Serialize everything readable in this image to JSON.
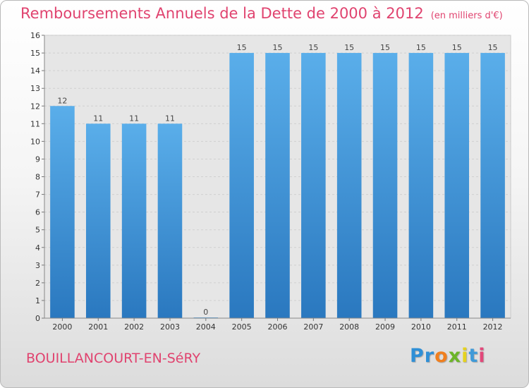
{
  "header": {
    "title": "Remboursements Annuels de la Dette de 2000 à 2012",
    "unit": "(en milliers d'€)"
  },
  "footer": {
    "commune": "BOUILLANCOURT-EN-SéRY",
    "logo_letters": [
      {
        "char": "P",
        "color": "#2f8fd6"
      },
      {
        "char": "r",
        "color": "#2f8fd6"
      },
      {
        "char": "o",
        "color": "#f07f1e"
      },
      {
        "char": "x",
        "color": "#6cb528"
      },
      {
        "char": "i",
        "color": "#e5d21f"
      },
      {
        "char": "t",
        "color": "#3f9ad8"
      },
      {
        "char": "i",
        "color": "#e2487a"
      }
    ]
  },
  "chart_data": {
    "type": "bar",
    "categories": [
      "2000",
      "2001",
      "2002",
      "2003",
      "2004",
      "2005",
      "2006",
      "2007",
      "2008",
      "2009",
      "2010",
      "2011",
      "2012"
    ],
    "values": [
      12,
      11,
      11,
      11,
      0,
      15,
      15,
      15,
      15,
      15,
      15,
      15,
      15
    ],
    "data_labels": [
      "12",
      "11",
      "11",
      "11",
      "0",
      "15",
      "15",
      "15",
      "15",
      "15",
      "15",
      "15",
      "15"
    ],
    "y_ticks": [
      0,
      1,
      2,
      3,
      4,
      5,
      6,
      7,
      8,
      9,
      10,
      11,
      12,
      13,
      14,
      15,
      16
    ],
    "ylim": [
      0,
      16
    ],
    "grid": true,
    "bar_color": "#4f9fe0"
  }
}
